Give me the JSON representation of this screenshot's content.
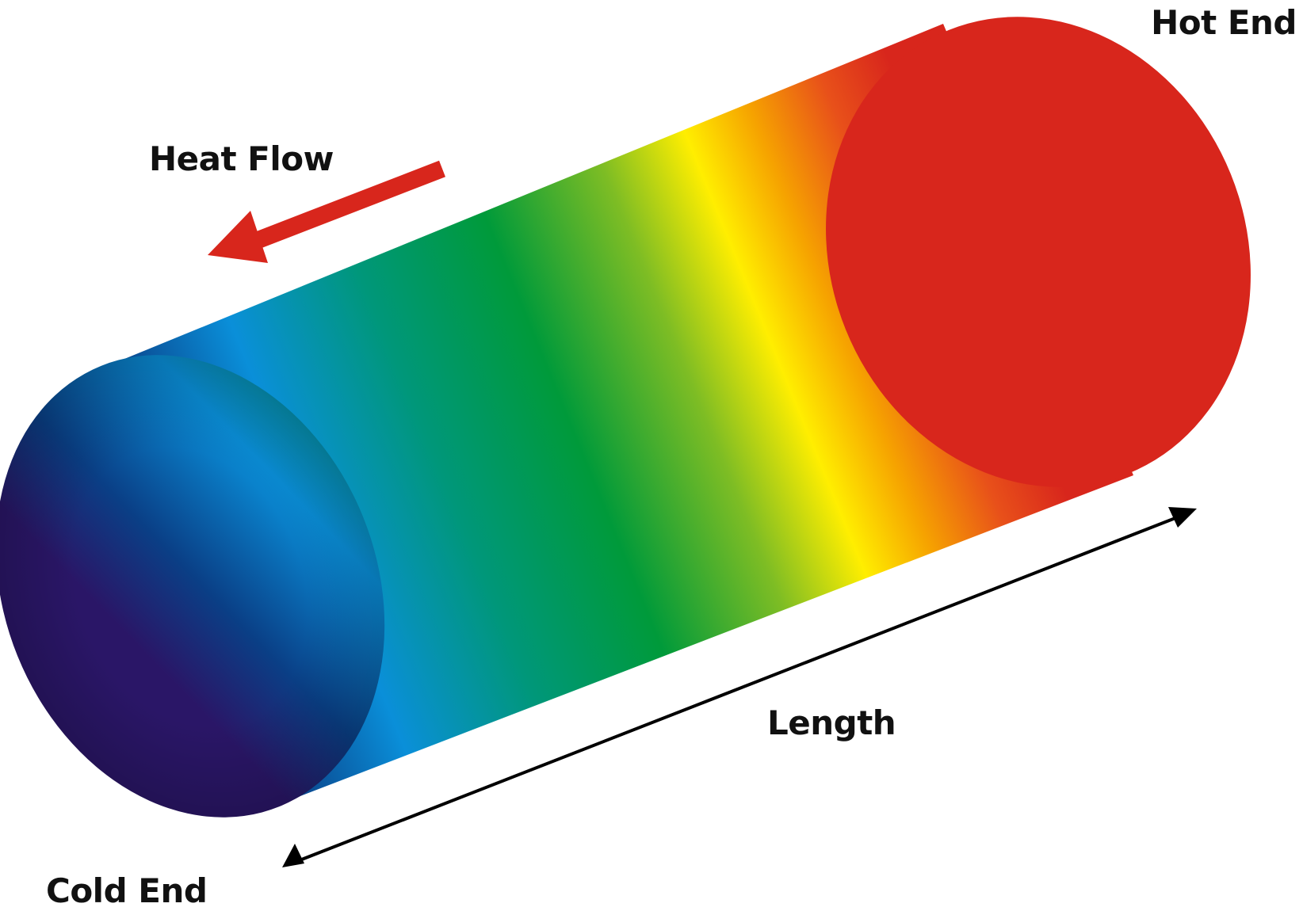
{
  "labels": {
    "hot_end": "Hot End",
    "heat_flow": "Heat Flow",
    "length": "Length",
    "cold_end": "Cold End"
  },
  "colors": {
    "background": "#ffffff",
    "text": "#111111",
    "heat_flow_arrow": "#d8261c",
    "length_arrow": "#000000",
    "hot_face": "#d8261c",
    "gradient": [
      "#2a1667",
      "#0a3f86",
      "#0a8fd9",
      "#00977a",
      "#009a3a",
      "#7ebd24",
      "#ffee00",
      "#f6a300",
      "#e8501a",
      "#d8261c"
    ]
  },
  "icons": {
    "heat_flow": "arrow-left-down-icon",
    "length": "double-headed-arrow-icon"
  }
}
